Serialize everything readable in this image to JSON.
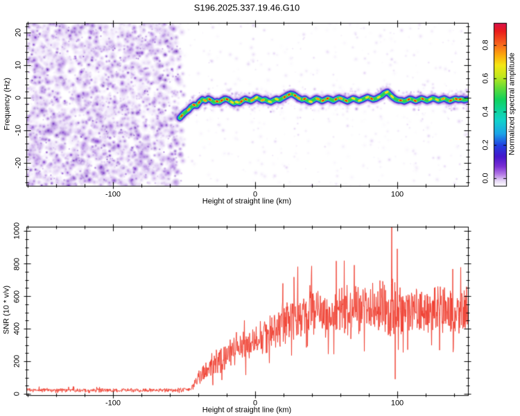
{
  "title": "S196.2025.337.19.46.G10",
  "colors": {
    "background": "#ffffff",
    "axis": "#000000",
    "text": "#000000",
    "snr_line": "#ef3b2c",
    "noise_palette": [
      "#f0e7fb",
      "#ddc9f3",
      "#c6a3ea",
      "#a978de",
      "#8b49d3",
      "#6d20c6",
      "#5a10b4"
    ],
    "trace_bands": [
      "rgba(160,100,220,0.22)",
      "rgba(122,50,206,0.45)",
      "#3a17d2",
      "#14c3e2",
      "#2fd24a"
    ],
    "bead_yellow": "#f5e01e",
    "bead_orange": "#ff9012",
    "bead_red": "#e81a0c"
  },
  "top_panel": {
    "ylabel": "Frequency (Hz)",
    "xlabel": "Height of straight line (km)",
    "y_tick_labels": [
      "20",
      "10",
      "0",
      "-10",
      "-20"
    ],
    "x_tick_labels": [
      "-100",
      "0",
      "100"
    ]
  },
  "colorbar": {
    "label": "Normalized spectral amplitude",
    "tick_labels": [
      "0.8",
      "0.6",
      "0.4",
      "0.2",
      "0.0"
    ],
    "gradient": [
      {
        "p": 0.0,
        "c": "#d8114e"
      },
      {
        "p": 0.05,
        "c": "#ea1b1b"
      },
      {
        "p": 0.13,
        "c": "#f8641c"
      },
      {
        "p": 0.2,
        "c": "#fcab0c"
      },
      {
        "p": 0.26,
        "c": "#f5e714"
      },
      {
        "p": 0.33,
        "c": "#c0e81e"
      },
      {
        "p": 0.4,
        "c": "#62dc38"
      },
      {
        "p": 0.47,
        "c": "#12d25c"
      },
      {
        "p": 0.54,
        "c": "#0ed49e"
      },
      {
        "p": 0.6,
        "c": "#12d2cc"
      },
      {
        "p": 0.68,
        "c": "#1ca4e8"
      },
      {
        "p": 0.75,
        "c": "#2041e0"
      },
      {
        "p": 0.82,
        "c": "#4416cc"
      },
      {
        "p": 0.88,
        "c": "#7a2ed4"
      },
      {
        "p": 0.93,
        "c": "#b47ae6"
      },
      {
        "p": 0.97,
        "c": "#e6d7f6"
      },
      {
        "p": 1.0,
        "c": "#fdfcff"
      }
    ]
  },
  "bottom_panel": {
    "ylabel": "SNR (10 * v/v)",
    "xlabel": "Height of straight line (km)",
    "y_tick_labels": [
      "1000",
      "800",
      "600",
      "400",
      "200",
      "0"
    ],
    "x_tick_labels": [
      "-100",
      "0",
      "100"
    ]
  },
  "chart_data": [
    {
      "type": "heatmap",
      "title": "S196.2025.337.19.46.G10",
      "xlabel": "Height of straight line (km)",
      "ylabel": "Frequency (Hz)",
      "colorbar_label": "Normalized spectral amplitude",
      "xlim": [
        -161,
        150
      ],
      "ylim": [
        -27,
        23
      ],
      "x_major_ticks": [
        -100,
        0,
        100
      ],
      "x_minor_step": 20,
      "y_major_ticks": [
        -20,
        -10,
        0,
        10,
        20
      ],
      "y_minor_step": 2,
      "colorbar_ticks": [
        0.0,
        0.2,
        0.4,
        0.6,
        0.8
      ],
      "colorbar_range": [
        0,
        0.93
      ],
      "noise_region_x_km": [
        -161,
        -50
      ],
      "noise_description": "dense purple speckle noise fills the full frequency range below -50 km; above -50 km background is nearly white with sparse faint speckles",
      "signal_trace": {
        "description": "narrow wiggly spectral line near 0 Hz from -53 km to right edge; purple/blue outer bands, cyan-green inner band, yellow-orange-red beaded core",
        "points": [
          [
            -53,
            -6.2
          ],
          [
            -51,
            -5.2
          ],
          [
            -49,
            -4.4
          ],
          [
            -47,
            -3.8
          ],
          [
            -45,
            -2.8
          ],
          [
            -43,
            -2.2
          ],
          [
            -41,
            -2.4
          ],
          [
            -39,
            -1.2
          ],
          [
            -37,
            -0.5
          ],
          [
            -35,
            -0.9
          ],
          [
            -33,
            -0.3
          ],
          [
            -31,
            -0.7
          ],
          [
            -29,
            -1.4
          ],
          [
            -27,
            -1.1
          ],
          [
            -25,
            -1.3
          ],
          [
            -23,
            -0.7
          ],
          [
            -21,
            -0.3
          ],
          [
            -19,
            -0.6
          ],
          [
            -17,
            -1.2
          ],
          [
            -15,
            -1.7
          ],
          [
            -13,
            -1.3
          ],
          [
            -11,
            -1.6
          ],
          [
            -9,
            -0.9
          ],
          [
            -7,
            -0.4
          ],
          [
            -5,
            -0.7
          ],
          [
            -3,
            -1.0
          ],
          [
            -1,
            -0.5
          ],
          [
            1,
            0.1
          ],
          [
            3,
            -0.3
          ],
          [
            5,
            -0.8
          ],
          [
            7,
            -0.5
          ],
          [
            9,
            -1.0
          ],
          [
            11,
            -1.3
          ],
          [
            13,
            -0.8
          ],
          [
            15,
            -0.4
          ],
          [
            17,
            -0.7
          ],
          [
            19,
            -0.2
          ],
          [
            21,
            0.3
          ],
          [
            23,
            0.8
          ],
          [
            25,
            1.2
          ],
          [
            27,
            1.0
          ],
          [
            29,
            0.4
          ],
          [
            31,
            -0.2
          ],
          [
            33,
            -0.6
          ],
          [
            35,
            -0.3
          ],
          [
            37,
            -0.9
          ],
          [
            39,
            -1.2
          ],
          [
            41,
            -0.7
          ],
          [
            43,
            -0.2
          ],
          [
            45,
            -0.5
          ],
          [
            47,
            -1.0
          ],
          [
            49,
            -0.6
          ],
          [
            51,
            -0.2
          ],
          [
            53,
            -0.5
          ],
          [
            55,
            -0.9
          ],
          [
            57,
            -0.4
          ],
          [
            59,
            0.0
          ],
          [
            61,
            -0.3
          ],
          [
            63,
            -0.7
          ],
          [
            65,
            -1.1
          ],
          [
            67,
            -0.6
          ],
          [
            69,
            -0.2
          ],
          [
            71,
            -0.5
          ],
          [
            73,
            -0.9
          ],
          [
            75,
            -0.6
          ],
          [
            77,
            -0.2
          ],
          [
            79,
            0.2
          ],
          [
            81,
            -0.1
          ],
          [
            83,
            -0.5
          ],
          [
            85,
            -0.3
          ],
          [
            87,
            0.2
          ],
          [
            89,
            0.6
          ],
          [
            91,
            1.4
          ],
          [
            93,
            1.8
          ],
          [
            95,
            0.9
          ],
          [
            97,
            0.1
          ],
          [
            99,
            -0.5
          ],
          [
            101,
            -0.8
          ],
          [
            103,
            -0.8
          ],
          [
            105,
            -1.1
          ],
          [
            107,
            -0.7
          ],
          [
            109,
            -0.3
          ],
          [
            111,
            -0.6
          ],
          [
            113,
            -1.0
          ],
          [
            115,
            -0.6
          ],
          [
            117,
            -0.2
          ],
          [
            119,
            -0.5
          ],
          [
            121,
            -0.9
          ],
          [
            123,
            -0.5
          ],
          [
            125,
            -0.1
          ],
          [
            127,
            -0.4
          ],
          [
            129,
            -0.8
          ],
          [
            131,
            -0.5
          ],
          [
            133,
            -0.2
          ],
          [
            135,
            -0.6
          ],
          [
            137,
            -1.0
          ],
          [
            139,
            -0.6
          ],
          [
            141,
            -0.3
          ],
          [
            143,
            -0.6
          ],
          [
            145,
            -0.4
          ],
          [
            147,
            -0.7
          ],
          [
            149,
            -0.5
          ]
        ]
      }
    },
    {
      "type": "line",
      "xlabel": "Height of straight line (km)",
      "ylabel": "SNR (10 * v/v)",
      "xlim": [
        -161,
        150
      ],
      "ylim": [
        0,
        1025
      ],
      "x_major_ticks": [
        -100,
        0,
        100
      ],
      "x_minor_step": 20,
      "y_major_ticks": [
        0,
        200,
        400,
        600,
        800,
        1000
      ],
      "y_minor_step": 50,
      "line_color": "#ef3b2c",
      "description": "noisy SNR trace: flat floor ~10-40 below -45 km, steep spiky rise from -45 km to ~30 km, then plateau fluctuating ~300-700",
      "envelope": [
        [
          -161,
          22,
          14
        ],
        [
          -60,
          22,
          14
        ],
        [
          -46,
          24,
          16
        ],
        [
          -43,
          55,
          35
        ],
        [
          -40,
          95,
          60
        ],
        [
          -35,
          135,
          75
        ],
        [
          -30,
          175,
          95
        ],
        [
          -25,
          205,
          100
        ],
        [
          -20,
          230,
          105
        ],
        [
          -15,
          265,
          110
        ],
        [
          -10,
          285,
          115
        ],
        [
          -5,
          305,
          120
        ],
        [
          0,
          335,
          130
        ],
        [
          5,
          355,
          135
        ],
        [
          10,
          375,
          140
        ],
        [
          15,
          405,
          150
        ],
        [
          20,
          435,
          160
        ],
        [
          25,
          455,
          170
        ],
        [
          30,
          470,
          180
        ],
        [
          35,
          480,
          180
        ],
        [
          40,
          490,
          185
        ],
        [
          45,
          500,
          190
        ],
        [
          55,
          505,
          190
        ],
        [
          65,
          505,
          185
        ],
        [
          75,
          505,
          185
        ],
        [
          85,
          510,
          190
        ],
        [
          92,
          520,
          210
        ],
        [
          96,
          545,
          240
        ],
        [
          100,
          520,
          190
        ],
        [
          110,
          505,
          175
        ],
        [
          120,
          500,
          170
        ],
        [
          130,
          510,
          175
        ],
        [
          140,
          500,
          170
        ],
        [
          150,
          515,
          180
        ]
      ],
      "notable_points": [
        {
          "x_km": 30,
          "snr": 780,
          "note": "spike"
        },
        {
          "x_km": 57,
          "snr": 815,
          "note": "spike"
        },
        {
          "x_km": 96,
          "snr": 1030,
          "note": "tallest spike"
        },
        {
          "x_km": 98.5,
          "snr": 90,
          "note": "deep dip"
        },
        {
          "x_km": 100,
          "snr": 890,
          "note": "spike"
        }
      ]
    }
  ]
}
